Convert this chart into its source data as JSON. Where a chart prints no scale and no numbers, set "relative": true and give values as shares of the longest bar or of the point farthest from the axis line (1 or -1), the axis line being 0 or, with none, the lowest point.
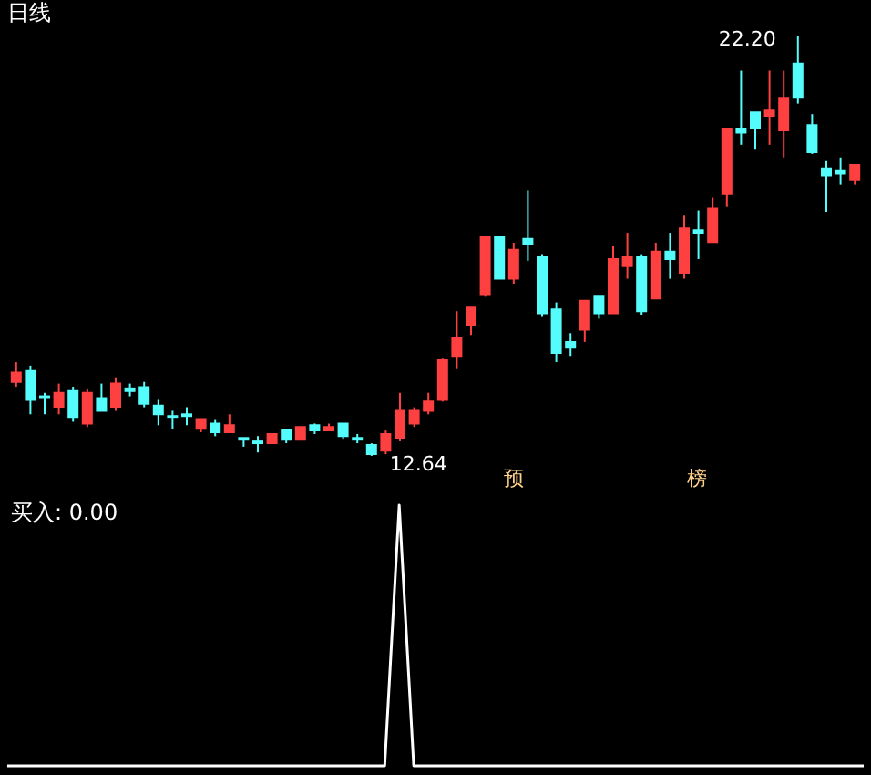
{
  "chart_data": [
    {
      "type": "candlestick",
      "title": "日线",
      "categories": [
        null,
        null,
        null,
        null,
        null,
        null,
        null,
        null,
        null,
        null,
        null,
        null,
        null,
        null,
        null,
        null,
        null,
        null,
        null,
        null,
        null,
        null,
        null,
        null,
        null,
        null,
        null,
        null,
        null,
        null,
        null,
        null,
        null,
        null,
        null,
        null,
        null,
        null,
        null,
        null,
        null,
        null,
        null,
        null,
        null,
        null,
        null,
        null,
        null,
        null,
        null,
        null,
        null,
        null,
        null,
        null,
        null,
        null,
        null,
        null
      ],
      "ohlc": [
        [
          14.33,
          14.78,
          14.21,
          14.54
        ],
        [
          14.58,
          14.7,
          13.59,
          13.92
        ],
        [
          14.0,
          14.08,
          13.59,
          13.96
        ],
        [
          13.75,
          14.29,
          13.59,
          14.08
        ],
        [
          14.12,
          14.21,
          13.42,
          13.51
        ],
        [
          13.38,
          14.16,
          13.3,
          14.08
        ],
        [
          13.96,
          14.29,
          13.67,
          13.67
        ],
        [
          13.75,
          14.41,
          13.67,
          14.29
        ],
        [
          14.16,
          14.29,
          14.0,
          14.12
        ],
        [
          14.21,
          14.33,
          13.75,
          13.83
        ],
        [
          13.79,
          13.92,
          13.34,
          13.59
        ],
        [
          13.55,
          13.67,
          13.26,
          13.51
        ],
        [
          13.59,
          13.75,
          13.34,
          13.55
        ],
        [
          13.26,
          13.46,
          13.18,
          13.46
        ],
        [
          13.38,
          13.46,
          13.09,
          13.18
        ],
        [
          13.18,
          13.59,
          13.18,
          13.34
        ],
        [
          13.05,
          13.05,
          12.85,
          13.01
        ],
        [
          12.97,
          13.09,
          12.72,
          12.93
        ],
        [
          12.93,
          13.14,
          12.93,
          13.14
        ],
        [
          13.22,
          13.22,
          12.93,
          13.01
        ],
        [
          13.01,
          13.3,
          13.01,
          13.3
        ],
        [
          13.34,
          13.38,
          13.14,
          13.22
        ],
        [
          13.22,
          13.38,
          13.22,
          13.3
        ],
        [
          13.38,
          13.38,
          13.01,
          13.09
        ],
        [
          13.05,
          13.14,
          12.93,
          13.01
        ],
        [
          12.89,
          12.93,
          12.64,
          12.68
        ],
        [
          12.76,
          13.22,
          12.68,
          13.14
        ],
        [
          13.05,
          14.08,
          12.97,
          13.67
        ],
        [
          13.38,
          13.75,
          13.3,
          13.67
        ],
        [
          13.67,
          14.08,
          13.59,
          13.88
        ],
        [
          13.92,
          14.86,
          13.88,
          14.82
        ],
        [
          14.9,
          15.94,
          14.62,
          15.32
        ],
        [
          15.61,
          16.02,
          15.4,
          16.02
        ],
        [
          16.31,
          17.63,
          16.27,
          17.63
        ],
        [
          17.63,
          17.63,
          16.68,
          16.68
        ],
        [
          16.68,
          17.5,
          16.55,
          17.34
        ],
        [
          17.59,
          18.7,
          17.09,
          17.46
        ],
        [
          17.17,
          17.22,
          15.81,
          15.89
        ],
        [
          15.98,
          16.14,
          14.78,
          14.99
        ],
        [
          15.24,
          15.44,
          14.9,
          15.11
        ],
        [
          15.52,
          16.18,
          15.24,
          16.18
        ],
        [
          16.27,
          16.27,
          15.77,
          15.89
        ],
        [
          15.89,
          17.42,
          15.89,
          17.13
        ],
        [
          16.97,
          17.71,
          16.68,
          17.17
        ],
        [
          17.17,
          17.22,
          15.85,
          15.94
        ],
        [
          16.23,
          17.5,
          16.23,
          17.3
        ],
        [
          17.3,
          17.71,
          16.68,
          17.13
        ],
        [
          16.8,
          18.12,
          16.68,
          17.83
        ],
        [
          17.79,
          18.24,
          17.13,
          17.71
        ],
        [
          17.5,
          18.53,
          17.5,
          18.28
        ],
        [
          18.61,
          20.1,
          18.32,
          20.1
        ],
        [
          20.1,
          21.42,
          19.73,
          20.01
        ],
        [
          20.47,
          20.47,
          19.64,
          20.1
        ],
        [
          20.39,
          21.42,
          19.73,
          20.51
        ],
        [
          20.06,
          21.42,
          19.44,
          20.8
        ],
        [
          21.58,
          22.2,
          20.67,
          20.8
        ],
        [
          20.18,
          20.43,
          19.52,
          19.56
        ],
        [
          19.19,
          19.36,
          18.2,
          19.03
        ],
        [
          19.15,
          19.44,
          18.82,
          19.07
        ],
        [
          18.94,
          19.27,
          18.82,
          19.27
        ]
      ],
      "colors": [
        "#ff4040",
        "#54fcfc",
        "#54fcfc",
        "#ff4040",
        "#54fcfc",
        "#ff4040",
        "#54fcfc",
        "#ff4040",
        "#54fcfc",
        "#54fcfc",
        "#54fcfc",
        "#54fcfc",
        "#54fcfc",
        "#ff4040",
        "#54fcfc",
        "#ff4040",
        "#54fcfc",
        "#54fcfc",
        "#ff4040",
        "#54fcfc",
        "#ff4040",
        "#54fcfc",
        "#ff4040",
        "#54fcfc",
        "#54fcfc",
        "#54fcfc",
        "#ff4040",
        "#ff4040",
        "#ff4040",
        "#ff4040",
        "#ff4040",
        "#ff4040",
        "#ff4040",
        "#ff4040",
        "#54fcfc",
        "#ff4040",
        "#54fcfc",
        "#54fcfc",
        "#54fcfc",
        "#54fcfc",
        "#ff4040",
        "#54fcfc",
        "#ff4040",
        "#ff4040",
        "#54fcfc",
        "#ff4040",
        "#54fcfc",
        "#ff4040",
        "#54fcfc",
        "#ff4040",
        "#ff4040",
        "#54fcfc",
        "#54fcfc",
        "#ff4040",
        "#ff4040",
        "#54fcfc",
        "#54fcfc",
        "#54fcfc",
        "#54fcfc",
        "#ff4040"
      ],
      "annotations": [
        "12.64",
        "22.20",
        "预",
        "榜"
      ]
    },
    {
      "type": "line",
      "relative": true,
      "categories": [
        null,
        null,
        null,
        null,
        null,
        null,
        null,
        null,
        null,
        null,
        null,
        null,
        null,
        null,
        null,
        null,
        null,
        null,
        null,
        null,
        null,
        null,
        null,
        null,
        null,
        null,
        null,
        null,
        null,
        null,
        null,
        null,
        null,
        null,
        null,
        null,
        null,
        null,
        null,
        null,
        null,
        null,
        null,
        null,
        null,
        null,
        null,
        null,
        null,
        null,
        null,
        null,
        null,
        null,
        null,
        null,
        null,
        null,
        null,
        null
      ],
      "series": [
        {
          "color": "#ffffff",
          "values": [
            0,
            0,
            0,
            0,
            0,
            0,
            0,
            0,
            0,
            0,
            0,
            0,
            0,
            0,
            0,
            0,
            0,
            0,
            0,
            0,
            0,
            0,
            0,
            0,
            0,
            0,
            0,
            1,
            0,
            0,
            0,
            0,
            0,
            0,
            0,
            0,
            0,
            0,
            0,
            0,
            0,
            0,
            0,
            0,
            0,
            0,
            0,
            0,
            0,
            0,
            0,
            0,
            0,
            0,
            0,
            0,
            0,
            0,
            0,
            0
          ]
        }
      ],
      "annotations": [
        "买入: 0.00"
      ],
      "line_style": "solid"
    }
  ]
}
